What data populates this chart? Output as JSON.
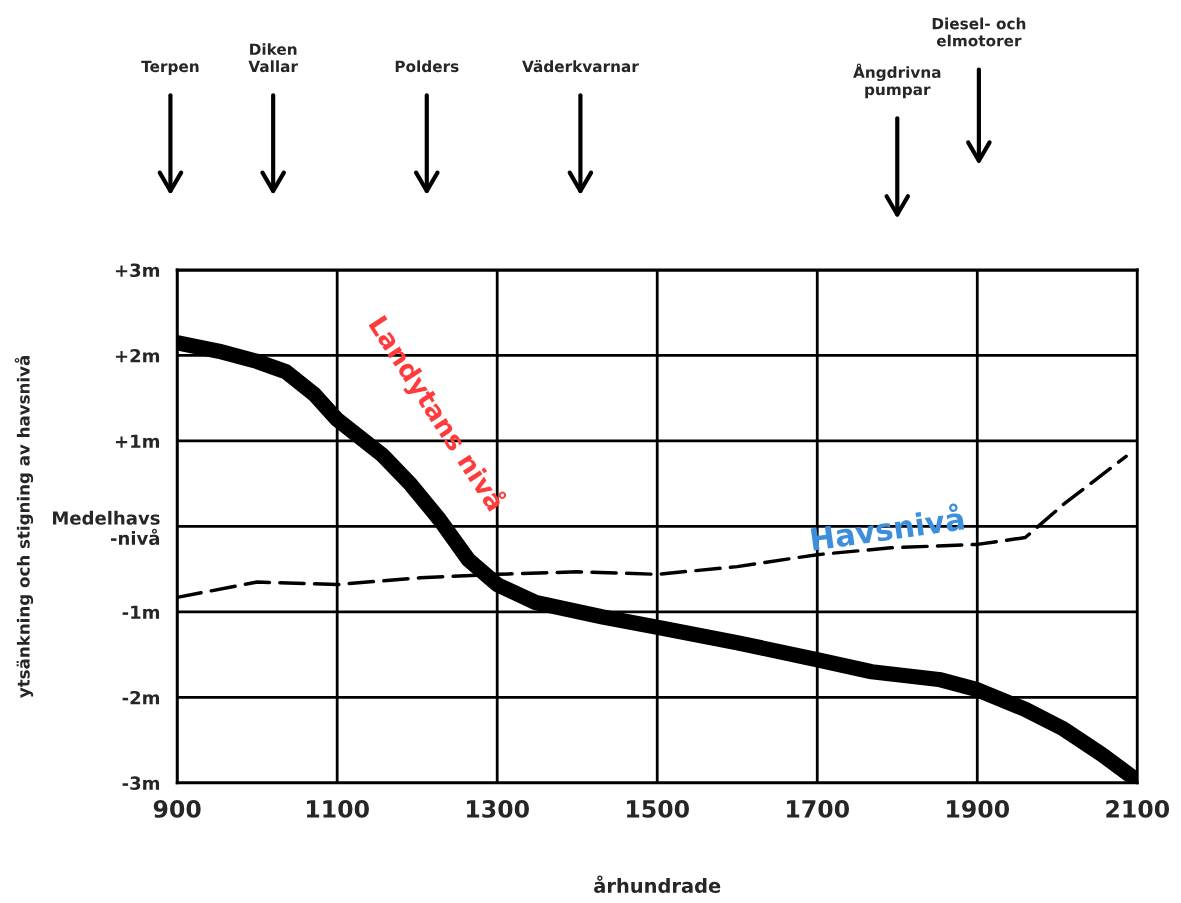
{
  "chart_data": {
    "type": "line",
    "xlabel": "århundrade",
    "ylabel": "ytsänkning och stigning av havsnivå",
    "xlim": [
      900,
      2100
    ],
    "xticks": [
      900,
      1100,
      1300,
      1500,
      1700,
      1900,
      2100
    ],
    "ylim": [
      -3,
      3
    ],
    "yticks": [
      {
        "value": 3,
        "label": "+3m"
      },
      {
        "value": 2,
        "label": "+2m"
      },
      {
        "value": 1,
        "label": "+1m"
      },
      {
        "value": 0,
        "label": "Medelhavs\n-nivå"
      },
      {
        "value": -1,
        "label": "-1m"
      },
      {
        "value": -2,
        "label": "-2m"
      },
      {
        "value": -3,
        "label": "-3m"
      }
    ],
    "grid": true,
    "marker": "none",
    "series": [
      {
        "name": "Landytans nivå",
        "color": "#000000",
        "line_style": "solid",
        "x": [
          900,
          952,
          1000,
          1036,
          1072,
          1100,
          1156,
          1192,
          1228,
          1264,
          1300,
          1348,
          1432,
          1500,
          1600,
          1700,
          1768,
          1852,
          1900,
          1960,
          2008,
          2056,
          2098
        ],
        "values": [
          2.15,
          2.05,
          1.93,
          1.81,
          1.54,
          1.25,
          0.84,
          0.49,
          0.08,
          -0.39,
          -0.68,
          -0.89,
          -1.06,
          -1.18,
          -1.36,
          -1.56,
          -1.7,
          -1.79,
          -1.91,
          -2.14,
          -2.37,
          -2.67,
          -2.96
        ]
      },
      {
        "name": "Havsnivå",
        "color": "#000000",
        "line_style": "dashed",
        "x": [
          900,
          1000,
          1100,
          1204,
          1300,
          1400,
          1500,
          1600,
          1700,
          1792,
          1900,
          1960,
          2008,
          2086
        ],
        "values": [
          -0.83,
          -0.65,
          -0.68,
          -0.6,
          -0.56,
          -0.53,
          -0.56,
          -0.47,
          -0.33,
          -0.25,
          -0.21,
          -0.13,
          0.26,
          0.82
        ]
      }
    ],
    "annotations": [
      "Terpen",
      "Diken\nVallar",
      "Polders",
      "Väderkvarnar",
      "Ångdrivna\npumpar",
      "Diesel- och\nelmotorer"
    ]
  }
}
